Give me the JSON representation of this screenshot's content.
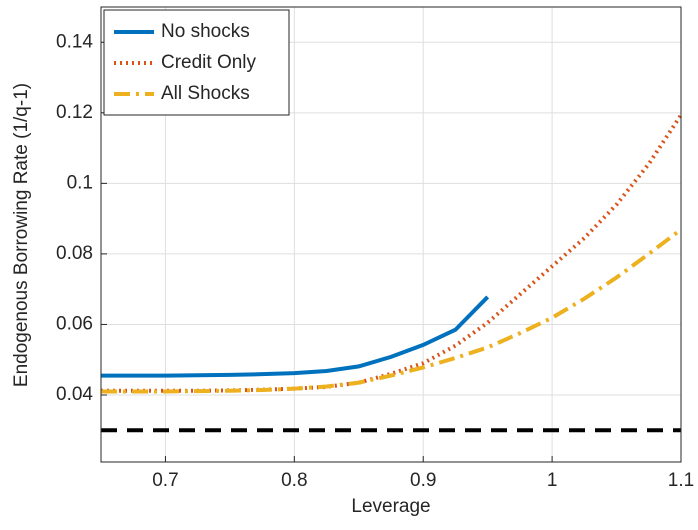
{
  "chart_data": {
    "type": "line",
    "xlabel": "Leverage",
    "ylabel": "Endogenous Borrowing Rate (1/q-1)",
    "x": [
      0.65,
      0.675,
      0.7,
      0.725,
      0.75,
      0.775,
      0.8,
      0.825,
      0.85,
      0.875,
      0.9,
      0.925,
      0.95,
      0.975,
      1.0,
      1.025,
      1.05,
      1.075,
      1.1
    ],
    "series": [
      {
        "name": "No shocks",
        "color": "#0072bd",
        "dash": "solid",
        "values": [
          0.0455,
          0.0455,
          0.0455,
          0.0456,
          0.0457,
          0.0459,
          0.0462,
          0.0468,
          0.0481,
          0.0508,
          0.0542,
          0.0585,
          0.0678,
          null,
          null,
          null,
          null,
          null,
          null
        ]
      },
      {
        "name": "Credit Only",
        "color": "#d95319",
        "dash": "dotted",
        "values": [
          0.0412,
          0.0412,
          0.0412,
          0.0412,
          0.0413,
          0.0415,
          0.0418,
          0.0423,
          0.0435,
          0.046,
          0.049,
          0.054,
          0.0605,
          0.0685,
          0.0765,
          0.0845,
          0.094,
          0.1055,
          0.1194
        ]
      },
      {
        "name": "All Shocks",
        "color": "#edb120",
        "dash": "dashdot",
        "values": [
          0.041,
          0.041,
          0.041,
          0.0411,
          0.0412,
          0.0414,
          0.0418,
          0.0424,
          0.0435,
          0.0455,
          0.0478,
          0.0505,
          0.0535,
          0.0575,
          0.0619,
          0.0673,
          0.0733,
          0.08,
          0.0869
        ]
      },
      {
        "color": "#000000",
        "dash": "dashed",
        "values": [
          0.03,
          0.03,
          0.03,
          0.03,
          0.03,
          0.03,
          0.03,
          0.03,
          0.03,
          0.03,
          0.03,
          0.03,
          0.03,
          0.03,
          0.03,
          0.03,
          0.03,
          0.03,
          0.03
        ]
      }
    ],
    "xlim": [
      0.65,
      1.1
    ],
    "xticks": [
      0.7,
      0.8,
      0.9,
      1,
      1.1
    ],
    "ylim": [
      0.021,
      0.15
    ],
    "yticks": [
      0.04,
      0.06,
      0.08,
      0.1,
      0.12,
      0.14
    ],
    "grid": true,
    "legend": "upper left"
  }
}
